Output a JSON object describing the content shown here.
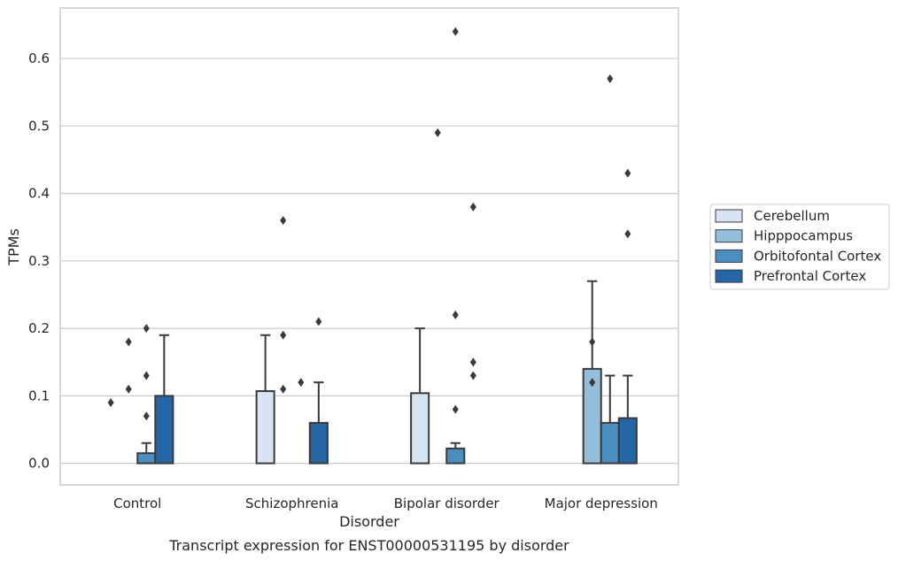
{
  "caption": "Transcript expression for ENST00000531195 by disorder",
  "colors": {
    "background": "#ffffff",
    "grid": "#cccccc",
    "frame": "#cccccc",
    "edge": "#3a3a3a",
    "series": [
      "#d6e4f3",
      "#94bedb",
      "#4b8fc0",
      "#2466a6"
    ]
  },
  "chart_data": {
    "type": "bar",
    "xlabel": "Disorder",
    "ylabel": "TPMs",
    "ylim": [
      -0.032,
      0.675
    ],
    "yticks": [
      "0.0",
      "0.1",
      "0.2",
      "0.3",
      "0.4",
      "0.5",
      "0.6"
    ],
    "grid": true,
    "legend_placement": "right",
    "categories": [
      "Control",
      "Schizophrenia",
      "Bipolar disorder",
      "Major depression"
    ],
    "series": [
      {
        "name": "Cerebellum",
        "values": [
          0.0,
          0.107,
          0.104,
          0.0
        ],
        "whisker_top": [
          null,
          0.19,
          0.2,
          null
        ],
        "outliers": [
          [
            0.09
          ],
          [],
          [],
          []
        ]
      },
      {
        "name": "Hipppocampus",
        "values": [
          0.0,
          0.0,
          0.0,
          0.14
        ],
        "whisker_top": [
          null,
          null,
          null,
          0.27
        ],
        "outliers": [
          [
            0.18,
            0.11
          ],
          [
            0.36,
            0.19,
            0.11
          ],
          [
            0.49
          ],
          [
            0.18,
            0.12
          ]
        ]
      },
      {
        "name": "Orbitofontal Cortex",
        "values": [
          0.015,
          0.0,
          0.022,
          0.06
        ],
        "whisker_top": [
          0.03,
          null,
          0.03,
          0.13
        ],
        "outliers": [
          [
            0.2,
            0.13,
            0.07
          ],
          [
            0.12
          ],
          [
            0.64,
            0.22,
            0.08
          ],
          [
            0.57
          ]
        ]
      },
      {
        "name": "Prefrontal Cortex",
        "values": [
          0.1,
          0.06,
          0.0,
          0.067
        ],
        "whisker_top": [
          0.19,
          0.12,
          null,
          0.13
        ],
        "outliers": [
          [],
          [
            0.21
          ],
          [
            0.38,
            0.15,
            0.13
          ],
          [
            0.43,
            0.34
          ]
        ]
      }
    ]
  }
}
